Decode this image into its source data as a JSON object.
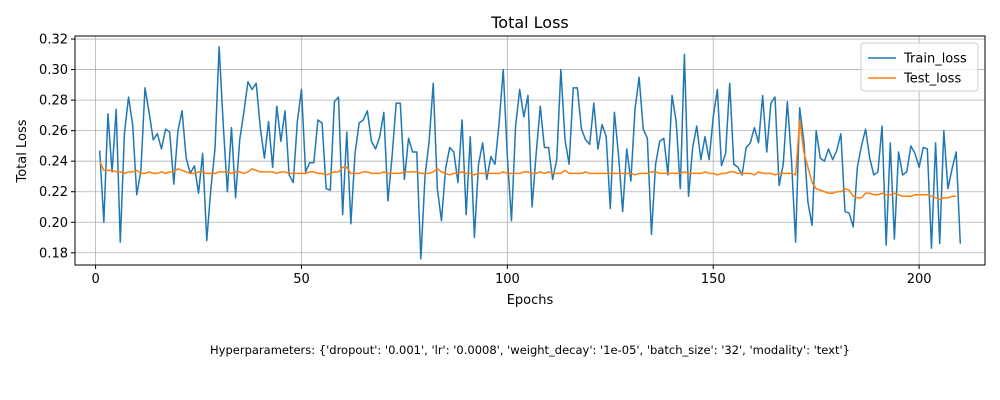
{
  "chart_data": {
    "type": "line",
    "title": "Total Loss",
    "xlabel": "Epochs",
    "ylabel": "Total Loss",
    "xlim": [
      -5,
      216
    ],
    "ylim": [
      0.172,
      0.322
    ],
    "xticks": [
      0,
      50,
      100,
      150,
      200
    ],
    "yticks": [
      0.18,
      0.2,
      0.22,
      0.24,
      0.26,
      0.28,
      0.3,
      0.32
    ],
    "grid": true,
    "legend_position": "top-right",
    "series": [
      {
        "name": "Train_loss",
        "color": "#1f77b4",
        "x_start": 1,
        "values": [
          0.247,
          0.2,
          0.271,
          0.233,
          0.274,
          0.187,
          0.258,
          0.282,
          0.264,
          0.218,
          0.234,
          0.288,
          0.272,
          0.254,
          0.258,
          0.248,
          0.261,
          0.259,
          0.225,
          0.26,
          0.273,
          0.242,
          0.232,
          0.237,
          0.219,
          0.245,
          0.188,
          0.222,
          0.248,
          0.315,
          0.264,
          0.22,
          0.262,
          0.216,
          0.254,
          0.272,
          0.292,
          0.287,
          0.291,
          0.262,
          0.242,
          0.266,
          0.236,
          0.276,
          0.253,
          0.273,
          0.231,
          0.226,
          0.266,
          0.287,
          0.233,
          0.239,
          0.239,
          0.267,
          0.265,
          0.222,
          0.221,
          0.279,
          0.282,
          0.205,
          0.259,
          0.199,
          0.245,
          0.265,
          0.267,
          0.273,
          0.253,
          0.248,
          0.256,
          0.272,
          0.214,
          0.243,
          0.278,
          0.278,
          0.228,
          0.255,
          0.246,
          0.246,
          0.176,
          0.23,
          0.253,
          0.291,
          0.222,
          0.201,
          0.235,
          0.249,
          0.246,
          0.226,
          0.267,
          0.205,
          0.256,
          0.19,
          0.238,
          0.252,
          0.228,
          0.243,
          0.238,
          0.265,
          0.3,
          0.243,
          0.201,
          0.263,
          0.287,
          0.269,
          0.283,
          0.21,
          0.245,
          0.276,
          0.249,
          0.249,
          0.228,
          0.241,
          0.3,
          0.254,
          0.238,
          0.288,
          0.288,
          0.261,
          0.254,
          0.251,
          0.278,
          0.248,
          0.264,
          0.256,
          0.209,
          0.272,
          0.244,
          0.207,
          0.248,
          0.227,
          0.274,
          0.295,
          0.261,
          0.255,
          0.192,
          0.238,
          0.253,
          0.255,
          0.231,
          0.283,
          0.266,
          0.222,
          0.31,
          0.217,
          0.249,
          0.263,
          0.241,
          0.256,
          0.241,
          0.269,
          0.287,
          0.237,
          0.245,
          0.291,
          0.238,
          0.236,
          0.231,
          0.249,
          0.252,
          0.262,
          0.252,
          0.283,
          0.246,
          0.278,
          0.282,
          0.224,
          0.238,
          0.279,
          0.241,
          0.187,
          0.275,
          0.253,
          0.213,
          0.198,
          0.26,
          0.242,
          0.24,
          0.248,
          0.241,
          0.247,
          0.258,
          0.207,
          0.206,
          0.197,
          0.236,
          0.25,
          0.261,
          0.242,
          0.231,
          0.233,
          0.263,
          0.185,
          0.252,
          0.189,
          0.246,
          0.231,
          0.233,
          0.25,
          0.245,
          0.236,
          0.249,
          0.248,
          0.183,
          0.252,
          0.186,
          0.26,
          0.222,
          0.235,
          0.246,
          0.186
        ]
      },
      {
        "name": "Test_loss",
        "color": "#ff7f0e",
        "x_start": 1,
        "values": [
          0.24,
          0.234,
          0.234,
          0.234,
          0.233,
          0.233,
          0.232,
          0.233,
          0.233,
          0.234,
          0.232,
          0.232,
          0.233,
          0.232,
          0.232,
          0.233,
          0.232,
          0.233,
          0.233,
          0.235,
          0.234,
          0.233,
          0.232,
          0.232,
          0.233,
          0.233,
          0.232,
          0.232,
          0.232,
          0.233,
          0.233,
          0.233,
          0.232,
          0.233,
          0.233,
          0.232,
          0.233,
          0.235,
          0.234,
          0.233,
          0.233,
          0.233,
          0.233,
          0.232,
          0.233,
          0.233,
          0.232,
          0.232,
          0.232,
          0.232,
          0.232,
          0.233,
          0.233,
          0.232,
          0.232,
          0.231,
          0.232,
          0.233,
          0.233,
          0.236,
          0.236,
          0.232,
          0.232,
          0.232,
          0.233,
          0.233,
          0.232,
          0.232,
          0.232,
          0.233,
          0.232,
          0.232,
          0.232,
          0.232,
          0.233,
          0.233,
          0.233,
          0.233,
          0.232,
          0.232,
          0.232,
          0.233,
          0.235,
          0.233,
          0.232,
          0.231,
          0.232,
          0.232,
          0.233,
          0.232,
          0.232,
          0.231,
          0.232,
          0.232,
          0.232,
          0.232,
          0.232,
          0.232,
          0.233,
          0.232,
          0.232,
          0.232,
          0.232,
          0.233,
          0.233,
          0.232,
          0.232,
          0.233,
          0.232,
          0.233,
          0.232,
          0.232,
          0.232,
          0.234,
          0.232,
          0.232,
          0.232,
          0.232,
          0.233,
          0.232,
          0.232,
          0.232,
          0.232,
          0.232,
          0.232,
          0.232,
          0.232,
          0.232,
          0.232,
          0.232,
          0.231,
          0.232,
          0.232,
          0.232,
          0.233,
          0.233,
          0.232,
          0.232,
          0.232,
          0.232,
          0.232,
          0.232,
          0.233,
          0.232,
          0.232,
          0.232,
          0.232,
          0.233,
          0.232,
          0.232,
          0.231,
          0.232,
          0.232,
          0.233,
          0.233,
          0.232,
          0.232,
          0.232,
          0.232,
          0.231,
          0.233,
          0.232,
          0.232,
          0.232,
          0.231,
          0.232,
          0.232,
          0.232,
          0.232,
          0.231,
          0.267,
          0.246,
          0.236,
          0.226,
          0.222,
          0.221,
          0.22,
          0.219,
          0.219,
          0.22,
          0.22,
          0.222,
          0.221,
          0.217,
          0.216,
          0.216,
          0.219,
          0.219,
          0.218,
          0.218,
          0.219,
          0.218,
          0.218,
          0.219,
          0.218,
          0.217,
          0.217,
          0.217,
          0.218,
          0.218,
          0.218,
          0.218,
          0.217,
          0.216,
          0.215,
          0.216,
          0.216,
          0.217,
          0.217
        ]
      }
    ],
    "annotation": "Hyperparameters: {'dropout': '0.001', 'lr': '0.0008', 'weight_decay': '1e-05', 'batch_size': '32', 'modality': 'text'}"
  }
}
